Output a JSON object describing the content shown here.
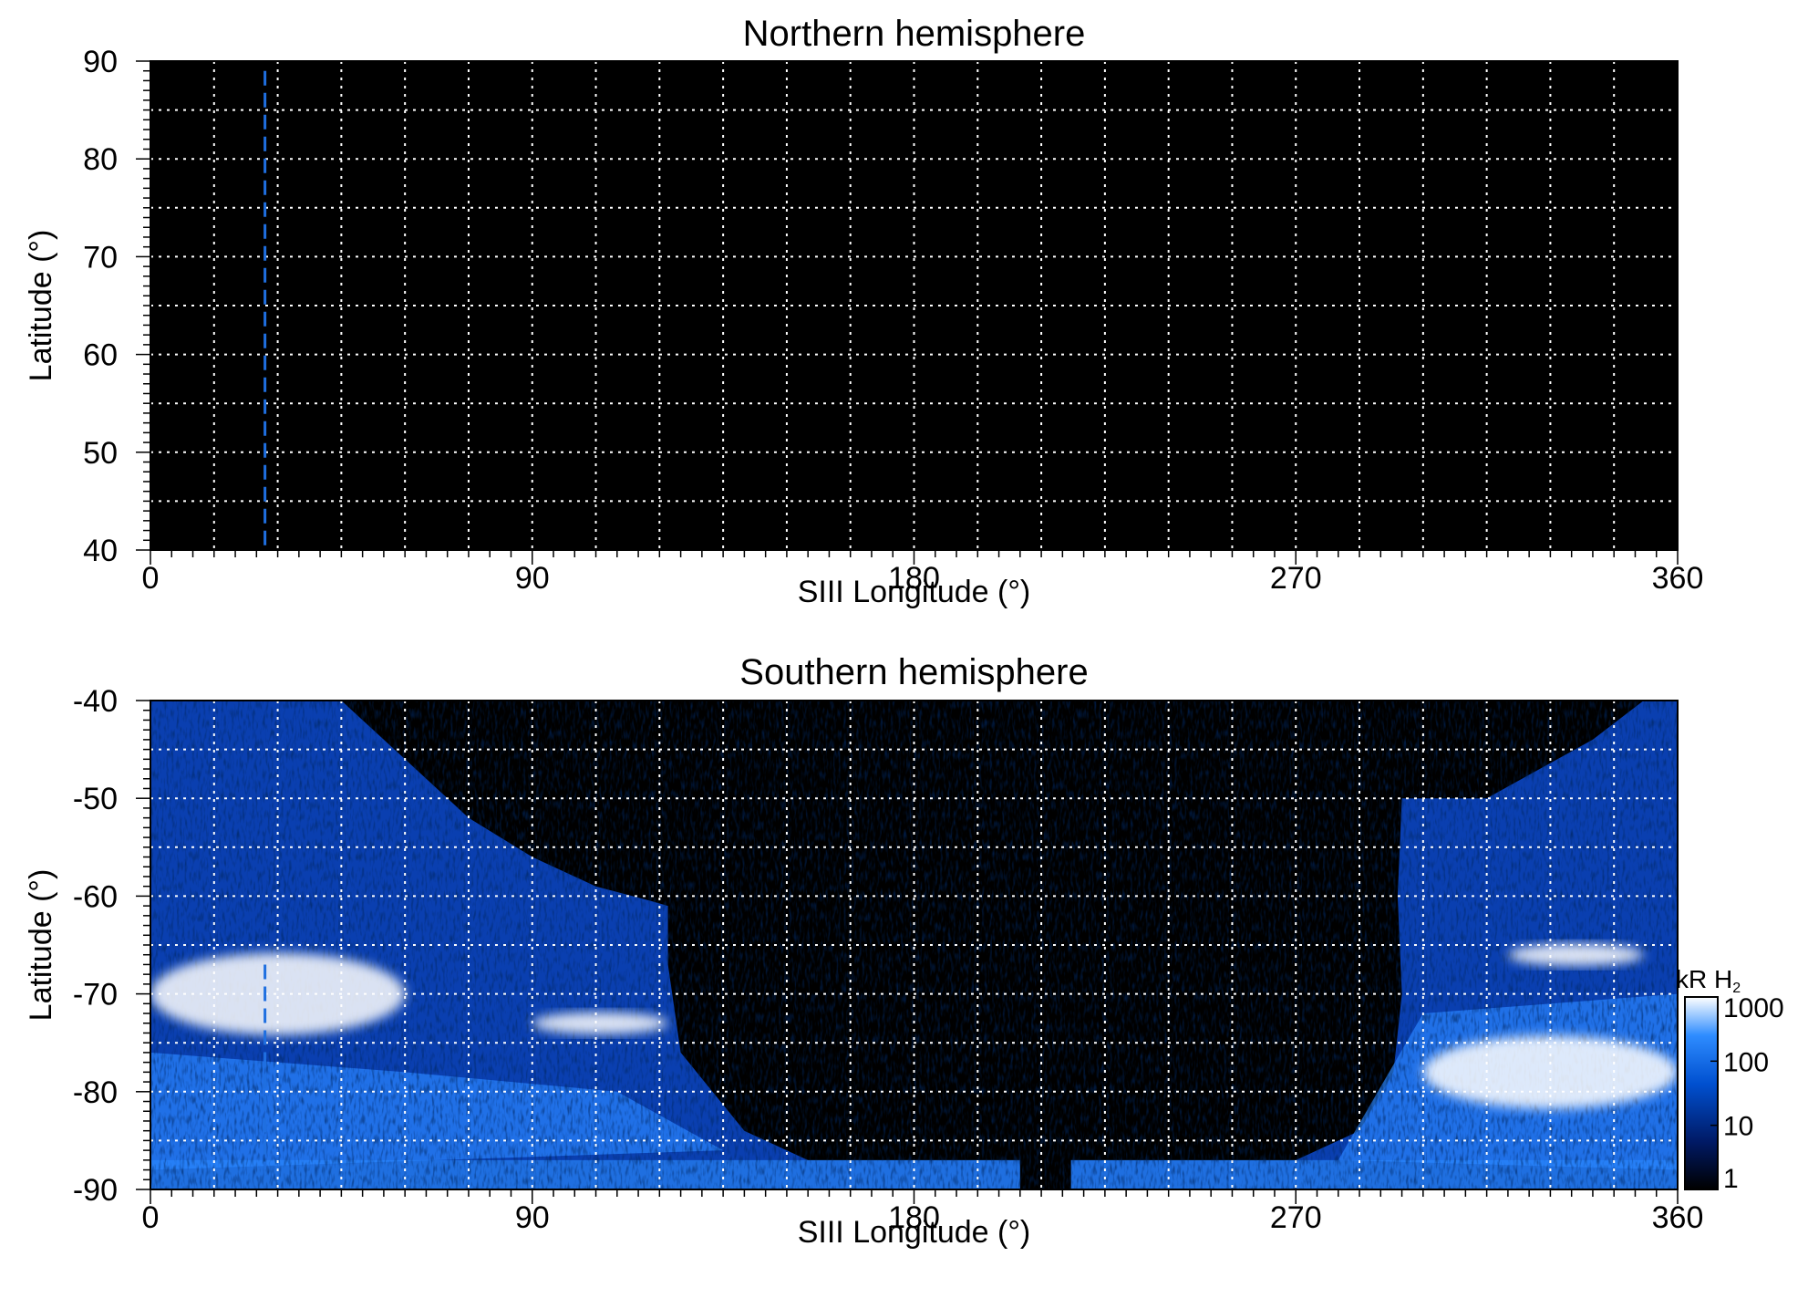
{
  "chart_data": [
    {
      "type": "heatmap",
      "title": "Northern hemisphere",
      "xlabel": "SIII Longitude (°)",
      "ylabel": "Latitude (°)",
      "xlim": [
        0,
        360
      ],
      "ylim": [
        40,
        90
      ],
      "xticks": [
        0,
        90,
        180,
        270,
        360
      ],
      "xtick_labels": [
        "0",
        "90",
        "180",
        "270",
        "360"
      ],
      "yticks": [
        40,
        50,
        60,
        70,
        80,
        90
      ],
      "ytick_labels": [
        "40",
        "50",
        "60",
        "70",
        "80",
        "90"
      ],
      "grid": true,
      "grid_x_step": 15,
      "grid_y_step": 5,
      "emission": "none visible (black)",
      "marker_line": {
        "longitude": 27,
        "lat_range": [
          40,
          89
        ],
        "color": "#1f6fe0",
        "style": "dashed"
      }
    },
    {
      "type": "heatmap",
      "title": "Southern hemisphere",
      "xlabel": "SIII Longitude (°)",
      "ylabel": "Latitude (°)",
      "xlim": [
        0,
        360
      ],
      "ylim": [
        -90,
        -40
      ],
      "xticks": [
        0,
        90,
        180,
        270,
        360
      ],
      "xtick_labels": [
        "0",
        "90",
        "180",
        "270",
        "360"
      ],
      "yticks": [
        -90,
        -80,
        -70,
        -60,
        -50,
        -40
      ],
      "ytick_labels": [
        "-90",
        "-80",
        "-70",
        "-60",
        "-50",
        "-40"
      ],
      "grid": true,
      "grid_x_step": 15,
      "grid_y_step": 5,
      "marker_line": {
        "longitude": 27,
        "lat_range": [
          -88,
          -67
        ],
        "color": "#1f6fe0",
        "style": "dashed"
      },
      "coverage_boundary": {
        "west_edge": [
          [
            0,
            -40
          ],
          [
            45,
            -40
          ],
          [
            60,
            -46
          ],
          [
            75,
            -52
          ],
          [
            90,
            -56
          ],
          [
            105,
            -59
          ],
          [
            118,
            -60.5
          ],
          [
            122,
            -61
          ],
          [
            122,
            -67
          ],
          [
            125,
            -76
          ],
          [
            140,
            -84
          ],
          [
            160,
            -88
          ],
          [
            175,
            -89
          ],
          [
            190,
            -90
          ]
        ],
        "east_edge": [
          [
            215,
            -90
          ],
          [
            240,
            -89
          ],
          [
            265,
            -88
          ],
          [
            285,
            -84
          ],
          [
            293,
            -78
          ],
          [
            295,
            -70
          ],
          [
            294,
            -60
          ],
          [
            295,
            -50
          ],
          [
            315,
            -50
          ],
          [
            340,
            -44
          ],
          [
            352,
            -40
          ],
          [
            360,
            -40
          ]
        ],
        "bottom_strip_lat": [
          -90,
          -87
        ]
      },
      "bright_features": [
        {
          "name": "main oval west",
          "lon_range": [
            0,
            60
          ],
          "lat_center": -70,
          "intensity_kR": 1000
        },
        {
          "name": "arc",
          "lon_range": [
            90,
            122
          ],
          "lat_center": -73,
          "intensity_kR": 1000
        },
        {
          "name": "oval east",
          "lon_range": [
            300,
            360
          ],
          "lat_center": -78,
          "intensity_kR": 1000
        },
        {
          "name": "arc east",
          "lon_range": [
            320,
            352
          ],
          "lat_center": -66,
          "intensity_kR": 1000
        }
      ],
      "colorbar": {
        "unit": "kR H",
        "unit_subscript": "2",
        "scale": "log",
        "range": [
          1,
          1000
        ],
        "ticks": [
          1,
          10,
          100,
          1000
        ],
        "tick_labels": [
          "1",
          "10",
          "100",
          "1000"
        ],
        "colors": [
          "#000000",
          "#001a66",
          "#0050d0",
          "#2e8cff",
          "#ffffff"
        ]
      }
    }
  ]
}
